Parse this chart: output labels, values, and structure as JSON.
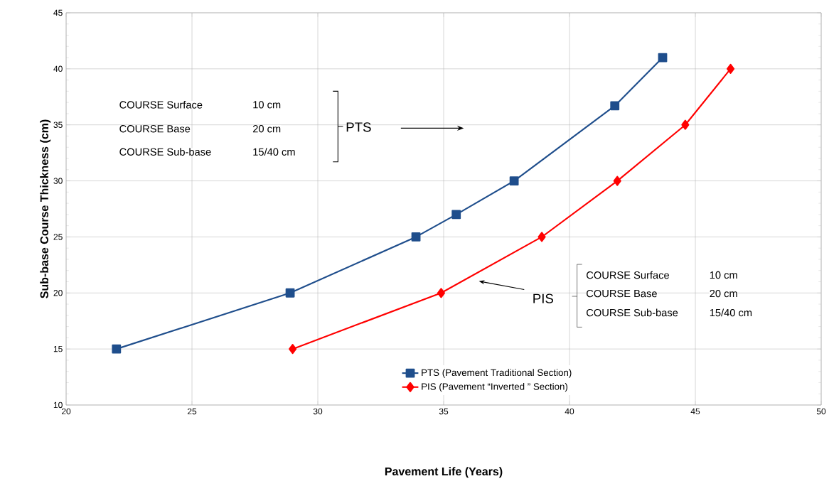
{
  "chart_data": {
    "type": "line",
    "xlabel": "Pavement Life (Years)",
    "ylabel": "Sub-base Course Thickness  (cm)",
    "xlim": [
      20,
      50
    ],
    "xticks": [
      20,
      25,
      30,
      35,
      40,
      45,
      50
    ],
    "ylim": [
      10,
      45
    ],
    "yticks": [
      10,
      15,
      20,
      25,
      30,
      35,
      40,
      45
    ],
    "grid": true,
    "legend": "bottom",
    "series": [
      {
        "name": "PTS (Pavement Traditional Section)",
        "color": "#1f4e8c",
        "marker": "square",
        "x": [
          22,
          28.9,
          33.9,
          35.5,
          37.8,
          41.8,
          43.7
        ],
        "values": [
          15,
          20,
          25,
          27,
          30,
          36.7,
          41
        ]
      },
      {
        "name": "PIS (Pavement “Inverted ” Section)",
        "color": "#ff0000",
        "marker": "diamond",
        "x": [
          29,
          34.9,
          38.9,
          41.9,
          44.6,
          46.4
        ],
        "values": [
          15,
          20,
          25,
          30,
          35,
          40
        ]
      }
    ],
    "annotations": [
      "COURSE Surface",
      "10 cm",
      "COURSE Base",
      "20 cm",
      "COURSE Sub-base",
      "15/40 cm",
      "PTS",
      "COURSE Surface",
      "10 cm",
      "COURSE  Base",
      "20 cm",
      "COURSE  Sub-base",
      "15/40 cm",
      "PIS"
    ]
  }
}
